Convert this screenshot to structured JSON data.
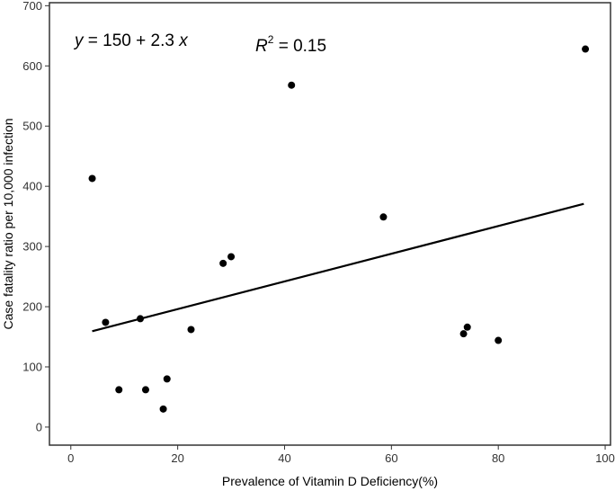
{
  "chart_data": {
    "type": "scatter",
    "xlabel": "Prevalence of Vitamin D Deficiency(%)",
    "ylabel": "Case fatality ratio per 10,000 infection",
    "xlim": [
      -4,
      101
    ],
    "ylim": [
      -30,
      705
    ],
    "x_ticks": [
      0,
      20,
      40,
      60,
      80,
      100
    ],
    "y_ticks": [
      0,
      100,
      200,
      300,
      400,
      500,
      600,
      700
    ],
    "grid": false,
    "points": [
      {
        "x": 4,
        "y": 413
      },
      {
        "x": 6.5,
        "y": 174
      },
      {
        "x": 9,
        "y": 62
      },
      {
        "x": 13,
        "y": 180
      },
      {
        "x": 14,
        "y": 62
      },
      {
        "x": 17.3,
        "y": 30
      },
      {
        "x": 18,
        "y": 80
      },
      {
        "x": 22.5,
        "y": 162
      },
      {
        "x": 28.5,
        "y": 272
      },
      {
        "x": 30,
        "y": 283
      },
      {
        "x": 41.3,
        "y": 568
      },
      {
        "x": 58.5,
        "y": 349
      },
      {
        "x": 73.5,
        "y": 155
      },
      {
        "x": 74.2,
        "y": 166
      },
      {
        "x": 80,
        "y": 144
      },
      {
        "x": 96.3,
        "y": 628
      }
    ],
    "fit_line": {
      "intercept": 150,
      "slope": 2.3,
      "x_range": [
        4,
        96
      ]
    },
    "annotations": {
      "equation_lhs": "y",
      "equation_rhs": " = 150 + 2.3 ",
      "equation_var": "x",
      "r2_symbol": "R",
      "r2_exponent": "2",
      "r2_value": " = 0.15"
    }
  }
}
